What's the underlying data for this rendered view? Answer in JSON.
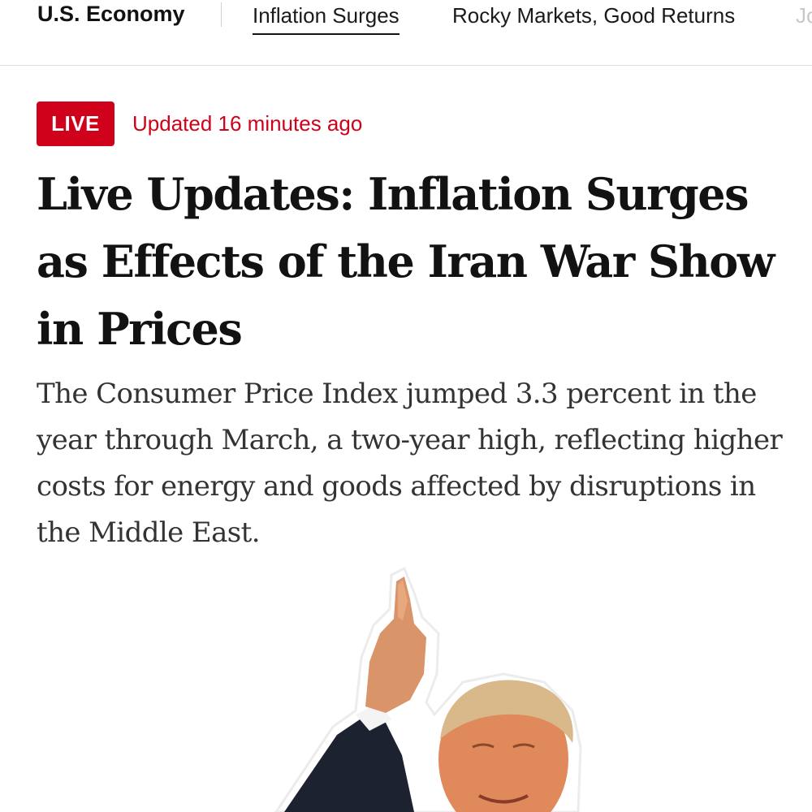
{
  "nav": {
    "section": "U.S. Economy",
    "tabs": [
      {
        "label": "Inflation Surges"
      },
      {
        "label": "Rocky Markets, Good Returns"
      },
      {
        "label": "Jo"
      }
    ]
  },
  "article": {
    "live_label": "LIVE",
    "updated": "Updated 16 minutes ago",
    "headline": "Live Updates: Inflation Surges as Effects of the Iran War Show in Prices",
    "summary": "The Consumer Price Index jumped 3.3 percent in the year through March, a two-year high, reflecting higher costs for energy and goods affected by disruptions in the Middle East."
  },
  "colors": {
    "live_red": "#d0021b",
    "text": "#121212",
    "summary_text": "#333333"
  }
}
